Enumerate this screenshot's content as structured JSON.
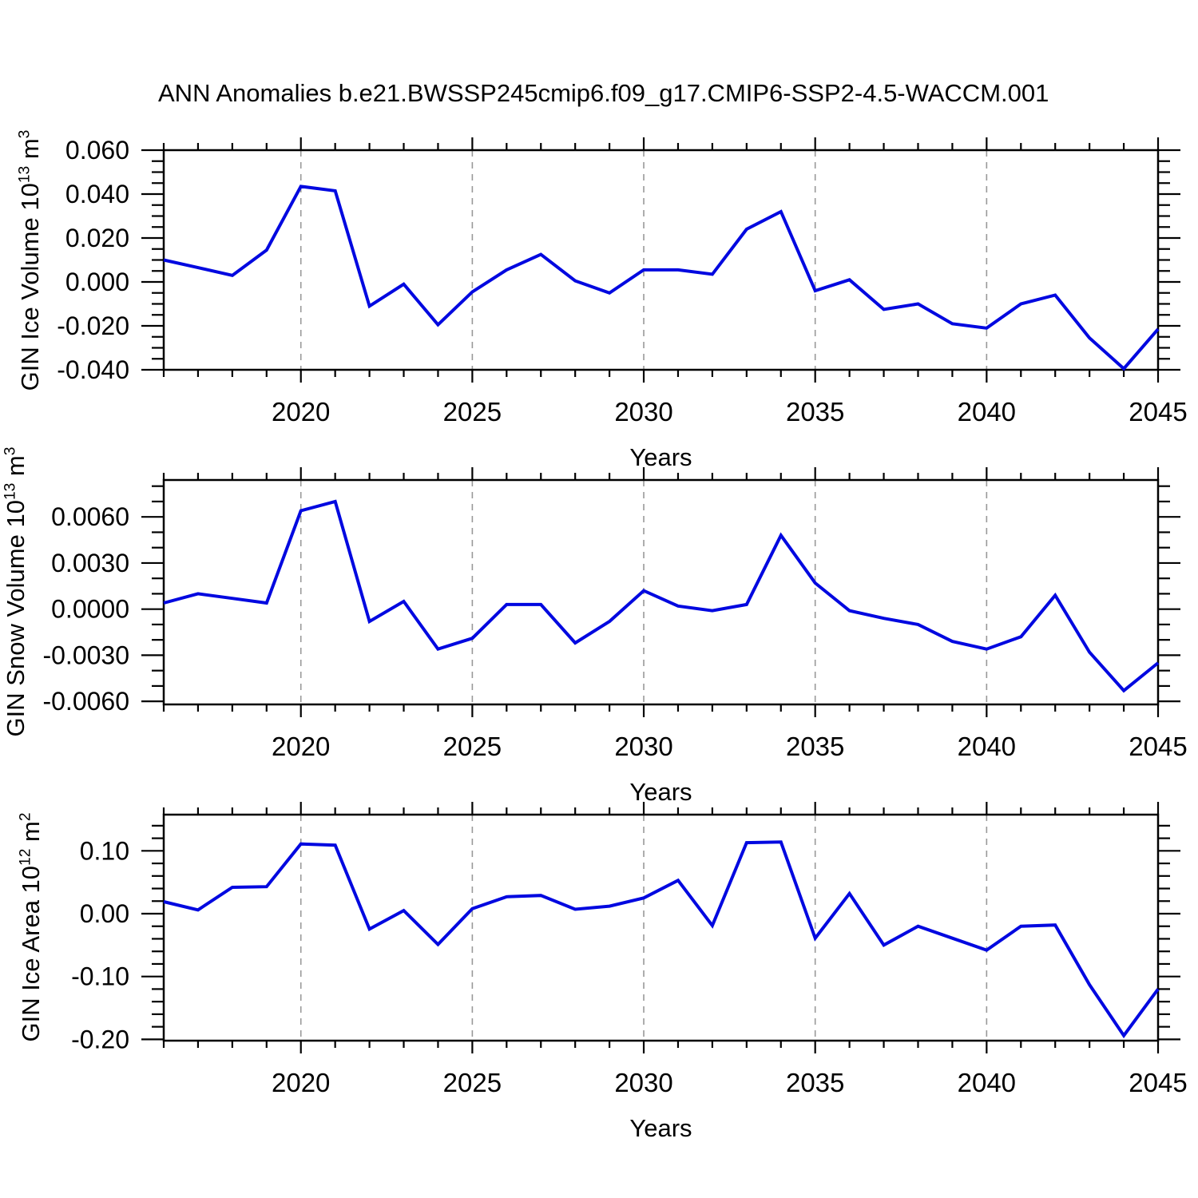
{
  "title": "ANN Anomalies b.e21.BWSSP245cmip6.f09_g17.CMIP6-SSP2-4.5-WACCM.001",
  "line_color": "#0008e0",
  "grid_color": "#999999",
  "axis_color": "#000000",
  "chart_data": [
    {
      "type": "line",
      "name": "gin-ice-volume",
      "ylabel": {
        "base": "GIN Ice Volume 10",
        "exp": "13",
        "unit": " m",
        "unit_exp": "3"
      },
      "xlabel": "Years",
      "x": [
        2016,
        2017,
        2018,
        2019,
        2020,
        2021,
        2022,
        2023,
        2024,
        2025,
        2026,
        2027,
        2028,
        2029,
        2030,
        2031,
        2032,
        2033,
        2034,
        2035,
        2036,
        2037,
        2038,
        2039,
        2040,
        2041,
        2042,
        2043,
        2044,
        2045
      ],
      "values": [
        0.01,
        0.0065,
        0.003,
        0.0145,
        0.0435,
        0.0415,
        -0.011,
        -0.001,
        -0.0195,
        -0.0045,
        0.0055,
        0.0125,
        0.0005,
        -0.005,
        0.0055,
        0.0055,
        0.0035,
        0.024,
        0.032,
        -0.004,
        0.001,
        -0.0125,
        -0.01,
        -0.019,
        -0.021,
        -0.01,
        -0.006,
        -0.0255,
        -0.0395,
        -0.0215
      ],
      "xlim": [
        2016,
        2045
      ],
      "ylim": [
        -0.04,
        0.06
      ],
      "xticks": [
        2020,
        2025,
        2030,
        2035,
        2040,
        2045
      ],
      "xtick_labels": [
        "2020",
        "2025",
        "2030",
        "2035",
        "2040",
        "2045"
      ],
      "x_minor_step": 1,
      "yticks": [
        0.06,
        0.04,
        0.02,
        0.0,
        -0.02,
        -0.04
      ],
      "ytick_labels": [
        "0.060",
        "0.040",
        "0.020",
        "0.000",
        "-0.020",
        "-0.040"
      ],
      "y_minor_step": 0.005,
      "grid": "vertical-dashed"
    },
    {
      "type": "line",
      "name": "gin-snow-volume",
      "ylabel": {
        "base": "GIN Snow Volume 10",
        "exp": "13",
        "unit": " m",
        "unit_exp": "3"
      },
      "xlabel": "Years",
      "x": [
        2016,
        2017,
        2018,
        2019,
        2020,
        2021,
        2022,
        2023,
        2024,
        2025,
        2026,
        2027,
        2028,
        2029,
        2030,
        2031,
        2032,
        2033,
        2034,
        2035,
        2036,
        2037,
        2038,
        2039,
        2040,
        2041,
        2042,
        2043,
        2044,
        2045
      ],
      "values": [
        0.0004,
        0.001,
        0.0007,
        0.0004,
        0.0064,
        0.007,
        -0.0008,
        0.0005,
        -0.0026,
        -0.0019,
        0.0003,
        0.0003,
        -0.0022,
        -0.0008,
        0.0012,
        0.0002,
        -0.0001,
        0.0003,
        0.0048,
        0.0017,
        -0.0001,
        -0.0006,
        -0.001,
        -0.0021,
        -0.0026,
        -0.0018,
        0.0009,
        -0.0028,
        -0.0053,
        -0.0035
      ],
      "xlim": [
        2016,
        2045
      ],
      "ylim": [
        -0.0062,
        0.0084
      ],
      "xticks": [
        2020,
        2025,
        2030,
        2035,
        2040,
        2045
      ],
      "xtick_labels": [
        "2020",
        "2025",
        "2030",
        "2035",
        "2040",
        "2045"
      ],
      "x_minor_step": 1,
      "yticks": [
        0.006,
        0.003,
        0.0,
        -0.003,
        -0.006
      ],
      "ytick_labels": [
        "0.0060",
        "0.0030",
        "0.0000",
        "-0.0030",
        "-0.0060"
      ],
      "y_minor_step": 0.001,
      "grid": "vertical-dashed"
    },
    {
      "type": "line",
      "name": "gin-ice-area",
      "ylabel": {
        "base": "GIN Ice Area 10",
        "exp": "12",
        "unit": " m",
        "unit_exp": "2"
      },
      "xlabel": "Years",
      "x": [
        2016,
        2017,
        2018,
        2019,
        2020,
        2021,
        2022,
        2023,
        2024,
        2025,
        2026,
        2027,
        2028,
        2029,
        2030,
        2031,
        2032,
        2033,
        2034,
        2035,
        2036,
        2037,
        2038,
        2039,
        2040,
        2041,
        2042,
        2043,
        2044,
        2045
      ],
      "values": [
        0.019,
        0.006,
        0.042,
        0.043,
        0.111,
        0.109,
        -0.0245,
        0.005,
        -0.049,
        0.008,
        0.027,
        0.029,
        0.007,
        0.012,
        0.025,
        0.053,
        -0.019,
        0.113,
        0.114,
        -0.039,
        0.032,
        -0.05,
        -0.02,
        -0.039,
        -0.058,
        -0.02,
        -0.018,
        -0.113,
        -0.194,
        -0.12
      ],
      "xlim": [
        2016,
        2045
      ],
      "ylim": [
        -0.2021,
        0.1576
      ],
      "xticks": [
        2020,
        2025,
        2030,
        2035,
        2040,
        2045
      ],
      "xtick_labels": [
        "2020",
        "2025",
        "2030",
        "2035",
        "2040",
        "2045"
      ],
      "x_minor_step": 1,
      "yticks": [
        0.1,
        0.0,
        -0.1,
        -0.2
      ],
      "ytick_labels": [
        "0.10",
        "0.00",
        "-0.10",
        "-0.20"
      ],
      "y_minor_step": 0.02,
      "grid": "vertical-dashed"
    }
  ]
}
